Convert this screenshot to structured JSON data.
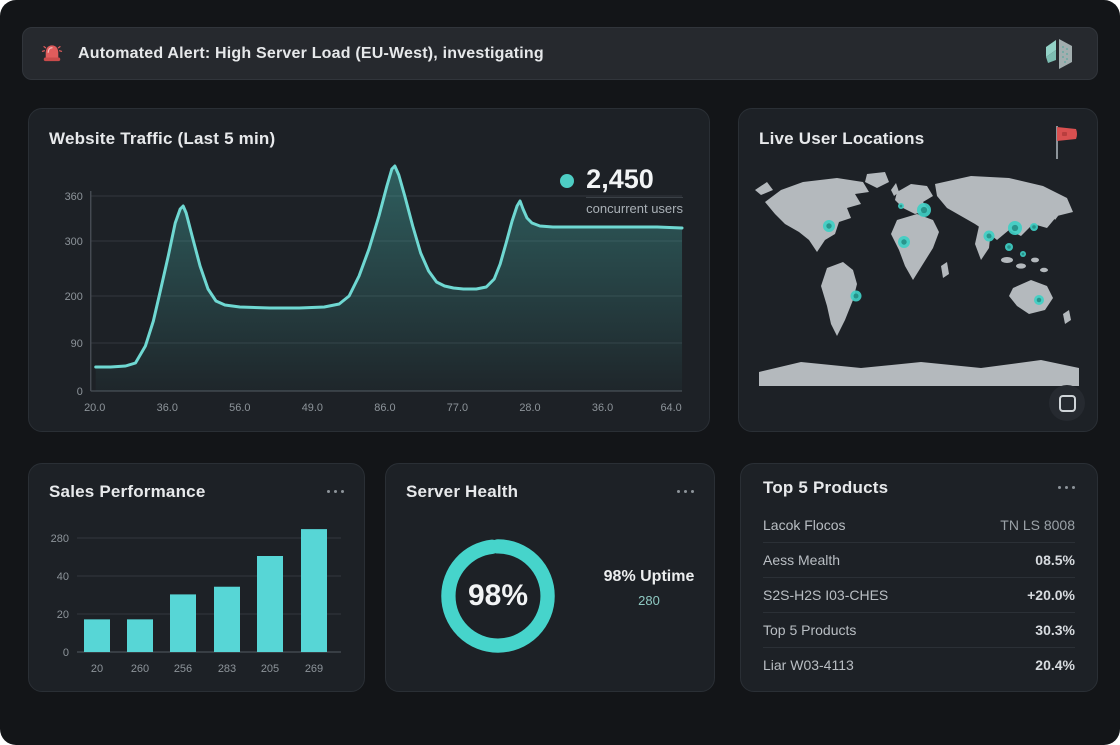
{
  "alert": {
    "text": "Automated Alert: High Server Load (EU-West), investigating"
  },
  "traffic": {
    "title": "Website Traffic (Last 5 min)",
    "legend_value": "2,450",
    "legend_label": "concurrent users",
    "y_ticks": [
      "360",
      "300",
      "200",
      "90",
      "0"
    ],
    "x_ticks": [
      "20.0",
      "36.0",
      "56.0",
      "49.0",
      "86.0",
      "77.0",
      "28.0",
      "36.0",
      "64.0"
    ]
  },
  "map": {
    "title": "Live User Locations",
    "markers": [
      {
        "x": 78,
        "y": 58,
        "r": 6
      },
      {
        "x": 150,
        "y": 38,
        "r": 3
      },
      {
        "x": 173,
        "y": 42,
        "r": 7
      },
      {
        "x": 153,
        "y": 74,
        "r": 6
      },
      {
        "x": 238,
        "y": 68,
        "r": 5.5
      },
      {
        "x": 264,
        "y": 60,
        "r": 7
      },
      {
        "x": 258,
        "y": 79,
        "r": 4
      },
      {
        "x": 272,
        "y": 86,
        "r": 3
      },
      {
        "x": 283,
        "y": 59,
        "r": 4
      },
      {
        "x": 105,
        "y": 128,
        "r": 5.5
      },
      {
        "x": 288,
        "y": 132,
        "r": 5
      }
    ]
  },
  "sales": {
    "title": "Sales Performance",
    "y_ticks": [
      "280",
      "40",
      "20",
      "0"
    ],
    "x_ticks": [
      "20",
      "260",
      "256",
      "283",
      "205",
      "269"
    ]
  },
  "server": {
    "title": "Server Health",
    "percent_label": "98%",
    "percent_value": 98,
    "uptime_label": "98% Uptime",
    "uptime_sub": "280"
  },
  "products": {
    "title": "Top 5 Products",
    "rows": [
      {
        "name": "Lacok Flocos",
        "value": "TN LS 8008",
        "dim": true
      },
      {
        "name": "Aess Mealth",
        "value": "08.5%",
        "dim": false
      },
      {
        "name": "S2S-H2S I03-CHES",
        "value": "+20.0%",
        "dim": false
      },
      {
        "name": "Top 5 Products",
        "value": "30.3%",
        "dim": false
      },
      {
        "name": "Liar W03-4113",
        "value": "20.4%",
        "dim": false
      }
    ]
  },
  "colors": {
    "accent_teal": "#4ed1c9",
    "line_teal": "#6fd8d2",
    "bar_teal": "#57d6d6",
    "alert_red": "#e05c5c",
    "page_bg": "#131518",
    "panel_bg": "#1d2126",
    "map_land": "#b4b9bd"
  },
  "chart_data": [
    {
      "type": "area",
      "title": "Website Traffic (Last 5 min)",
      "xlabel": "",
      "ylabel": "concurrent users",
      "x_tick_labels": [
        "20.0",
        "36.0",
        "56.0",
        "49.0",
        "86.0",
        "77.0",
        "28.0",
        "36.0",
        "64.0"
      ],
      "y_tick_labels": [
        "0",
        "90",
        "200",
        "300",
        "360"
      ],
      "ylim": [
        0,
        460
      ],
      "legend": "2,450 concurrent users",
      "values_approx": [
        50,
        50,
        340,
        190,
        190,
        450,
        230,
        230,
        360,
        330,
        330,
        330
      ],
      "points": [
        [
          45,
          206
        ],
        [
          60,
          206
        ],
        [
          75,
          205
        ],
        [
          85,
          202
        ],
        [
          95,
          185
        ],
        [
          103,
          160
        ],
        [
          110,
          130
        ],
        [
          118,
          95
        ],
        [
          125,
          62
        ],
        [
          130,
          48
        ],
        [
          133,
          45
        ],
        [
          136,
          52
        ],
        [
          142,
          75
        ],
        [
          150,
          105
        ],
        [
          158,
          128
        ],
        [
          166,
          140
        ],
        [
          175,
          144
        ],
        [
          190,
          146
        ],
        [
          220,
          147
        ],
        [
          250,
          147
        ],
        [
          275,
          146
        ],
        [
          290,
          143
        ],
        [
          300,
          135
        ],
        [
          310,
          115
        ],
        [
          320,
          88
        ],
        [
          330,
          55
        ],
        [
          338,
          25
        ],
        [
          343,
          8
        ],
        [
          346,
          5
        ],
        [
          350,
          14
        ],
        [
          356,
          35
        ],
        [
          364,
          65
        ],
        [
          372,
          92
        ],
        [
          380,
          110
        ],
        [
          388,
          121
        ],
        [
          396,
          125
        ],
        [
          405,
          127
        ],
        [
          415,
          128
        ],
        [
          428,
          128
        ],
        [
          438,
          126
        ],
        [
          446,
          118
        ],
        [
          452,
          103
        ],
        [
          458,
          82
        ],
        [
          464,
          60
        ],
        [
          469,
          45
        ],
        [
          472,
          40
        ],
        [
          475,
          48
        ],
        [
          479,
          57
        ],
        [
          484,
          62
        ],
        [
          492,
          65
        ],
        [
          505,
          66
        ],
        [
          530,
          66
        ],
        [
          570,
          66
        ],
        [
          610,
          66
        ],
        [
          635,
          67
        ]
      ]
    },
    {
      "type": "bar",
      "title": "Sales Performance",
      "categories": [
        "20",
        "260",
        "256",
        "283",
        "205",
        "269"
      ],
      "values": [
        17,
        17,
        30,
        34,
        50,
        64
      ],
      "ylim": [
        0,
        70
      ],
      "y_tick_labels": [
        "0",
        "20",
        "40",
        "280"
      ]
    },
    {
      "type": "pie",
      "title": "Server Health",
      "categories": [
        "Uptime"
      ],
      "values": [
        98
      ],
      "center_label": "98%"
    },
    {
      "type": "table",
      "title": "Top 5 Products",
      "rows": [
        [
          "Lacok Flocos",
          "TN LS 8008"
        ],
        [
          "Aess Mealth",
          "08.5%"
        ],
        [
          "S2S-H2S I03-CHES",
          "+20.0%"
        ],
        [
          "Top 5 Products",
          "30.3%"
        ],
        [
          "Liar W03-4113",
          "20.4%"
        ]
      ]
    }
  ]
}
